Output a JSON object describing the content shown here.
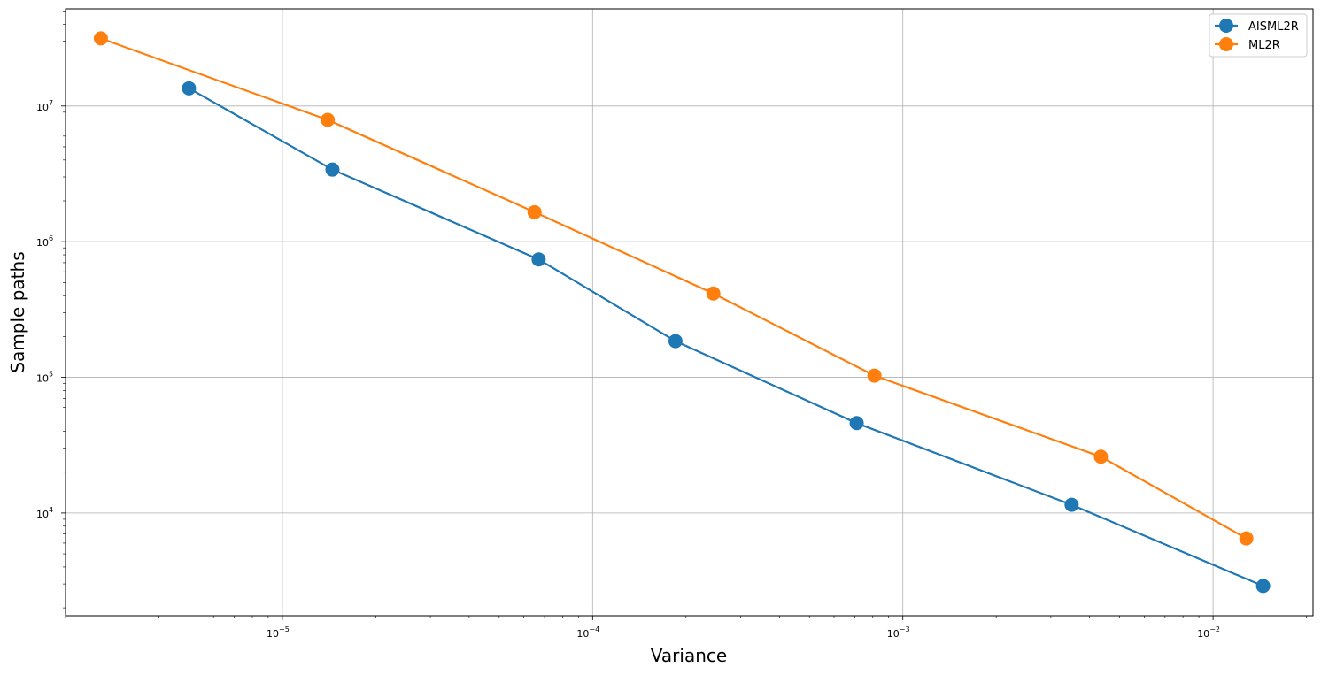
{
  "chart_data": {
    "type": "line",
    "xlabel": "Variance",
    "ylabel": "Sample paths",
    "xscale": "log",
    "yscale": "log",
    "xlim": [
      2e-06,
      0.021
    ],
    "ylim": [
      1750,
      52000000.0
    ],
    "grid": true,
    "legend_position": "top-right",
    "x_ticks": [
      {
        "value": 1e-05,
        "base": "10",
        "exp": "−5"
      },
      {
        "value": 0.0001,
        "base": "10",
        "exp": "−4"
      },
      {
        "value": 0.001,
        "base": "10",
        "exp": "−3"
      },
      {
        "value": 0.01,
        "base": "10",
        "exp": "−2"
      }
    ],
    "y_ticks": [
      {
        "value": 10000.0,
        "base": "10",
        "exp": "4"
      },
      {
        "value": 100000.0,
        "base": "10",
        "exp": "5"
      },
      {
        "value": 1000000.0,
        "base": "10",
        "exp": "6"
      },
      {
        "value": 10000000.0,
        "base": "10",
        "exp": "7"
      }
    ],
    "series": [
      {
        "name": "AISML2R",
        "color": "#1f77b4",
        "x": [
          5e-06,
          1.45e-05,
          6.7e-05,
          0.000185,
          0.00071,
          0.0035,
          0.0145
        ],
        "y": [
          13500000.0,
          3400000.0,
          740000.0,
          185000.0,
          46000.0,
          11500.0,
          2900
        ]
      },
      {
        "name": "ML2R",
        "color": "#ff7f0e",
        "x": [
          2.6e-06,
          1.4e-05,
          6.5e-05,
          0.000245,
          0.00081,
          0.00435,
          0.0128
        ],
        "y": [
          31500000.0,
          7900000.0,
          1650000.0,
          415000.0,
          103000.0,
          26000.0,
          6500
        ]
      }
    ]
  }
}
